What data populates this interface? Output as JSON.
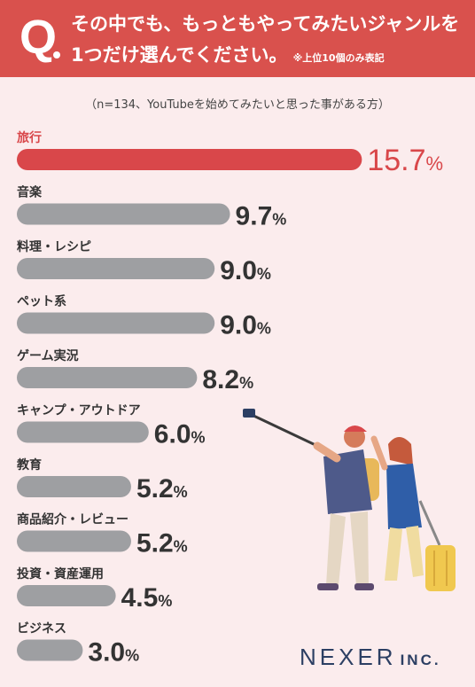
{
  "header": {
    "q_mark": "Q",
    "line1": "その中でも、もっともやってみたいジャンルを",
    "line2": "1つだけ選んでください。",
    "note": "※上位10個のみ表記"
  },
  "subtitle": "（n=134、YouTubeを始めてみたいと思った事がある方）",
  "logo": {
    "name": "NEXER",
    "suffix": "INC."
  },
  "colors": {
    "header": "#d9514d",
    "highlight": "#d9474a",
    "bar": "#9e9fa2",
    "background": "#fbeced"
  },
  "chart_data": {
    "type": "bar",
    "orientation": "horizontal",
    "categories": [
      "旅行",
      "音楽",
      "料理・レシピ",
      "ペット系",
      "ゲーム実況",
      "キャンプ・アウトドア",
      "教育",
      "商品紹介・レビュー",
      "投資・資産運用",
      "ビジネス"
    ],
    "values": [
      15.7,
      9.7,
      9.0,
      9.0,
      8.2,
      6.0,
      5.2,
      5.2,
      4.5,
      3.0
    ],
    "labels": [
      "15.7",
      "9.7",
      "9.0",
      "9.0",
      "8.2",
      "6.0",
      "5.2",
      "5.2",
      "4.5",
      "3.0"
    ],
    "unit": "%",
    "highlight_index": 0
  }
}
